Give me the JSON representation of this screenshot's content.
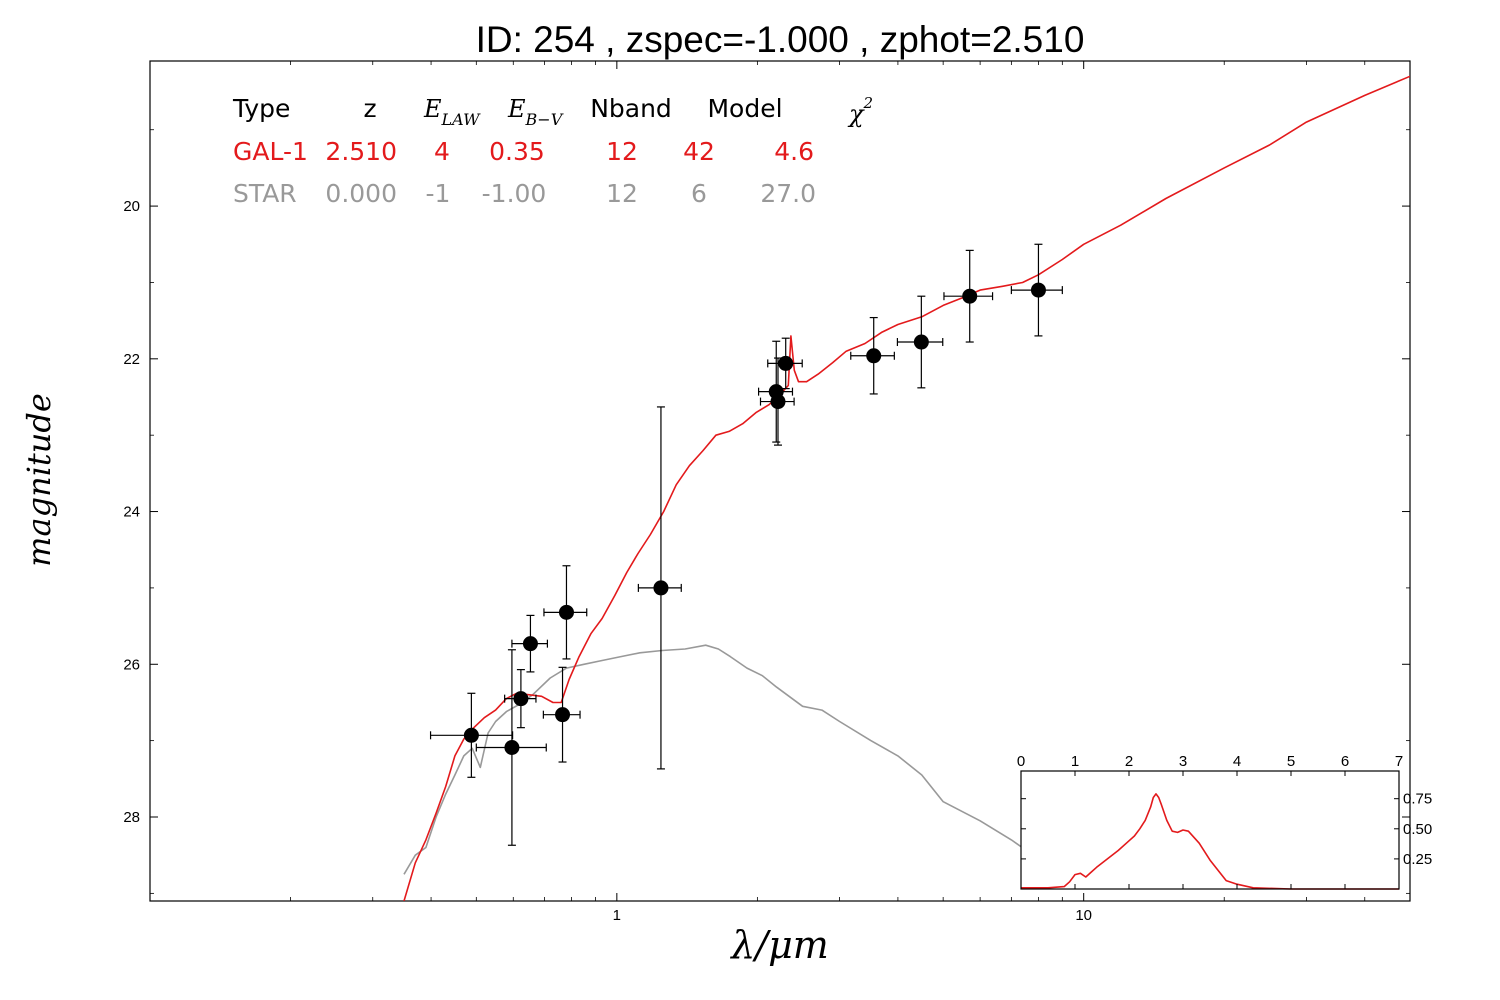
{
  "title": "ID:  254   , zspec=-1.000 , zphot=2.510",
  "colors": {
    "galaxy": "#e31a1c",
    "star": "#999999",
    "points": "#000000"
  },
  "table": {
    "headers": {
      "type": "Type",
      "z": "z",
      "elaw_base": "E",
      "elaw_sub": "LAW",
      "ebv_base": "E",
      "ebv_sub": "B−V",
      "nband": "Nband",
      "model": "Model",
      "chi_base": "χ",
      "chi_sup": "2"
    },
    "rows": [
      {
        "type": "GAL-1",
        "z": "2.510",
        "elaw": "4",
        "ebv": "0.35",
        "nband": "12",
        "model": "42",
        "chi2": "4.6",
        "color": "#e31a1c"
      },
      {
        "type": "STAR",
        "z": "0.000",
        "elaw": "-1",
        "ebv": "-1.00",
        "nband": "12",
        "model": "6",
        "chi2": "27.0",
        "color": "#999999"
      }
    ]
  },
  "chart_data": [
    {
      "type": "scatter",
      "xlabel": "λ/μm",
      "ylabel": "magnitude",
      "xscale": "log",
      "xlim": [
        0.1,
        50
      ],
      "ylim": [
        29.1,
        18.1
      ],
      "y_inverted": true,
      "xticks": [
        {
          "value": 1,
          "label": "1"
        },
        {
          "value": 10,
          "label": "10"
        }
      ],
      "yticks": [
        {
          "value": 20,
          "label": "20"
        },
        {
          "value": 22,
          "label": "22"
        },
        {
          "value": 24,
          "label": "24"
        },
        {
          "value": 26,
          "label": "26"
        },
        {
          "value": 28,
          "label": "28"
        }
      ],
      "points": [
        {
          "x": 0.488,
          "y": 26.93,
          "xerr": [
            0.089,
            0.11
          ],
          "yerr": [
            0.55,
            0.55
          ]
        },
        {
          "x": 0.596,
          "y": 27.09,
          "xerr": [
            0.096,
            0.11
          ],
          "yerr": [
            1.28,
            1.28
          ]
        },
        {
          "x": 0.623,
          "y": 26.45,
          "xerr": [
            0.048,
            0.048
          ],
          "yerr": [
            0.38,
            0.38
          ]
        },
        {
          "x": 0.653,
          "y": 25.73,
          "xerr": [
            0.057,
            0.057
          ],
          "yerr": [
            0.37,
            0.37
          ]
        },
        {
          "x": 0.765,
          "y": 26.66,
          "xerr": [
            0.069,
            0.069
          ],
          "yerr": [
            0.62,
            0.62
          ]
        },
        {
          "x": 0.78,
          "y": 25.32,
          "xerr": [
            0.082,
            0.082
          ],
          "yerr": [
            0.61,
            0.61
          ]
        },
        {
          "x": 1.243,
          "y": 25.0,
          "xerr": [
            0.131,
            0.131
          ],
          "yerr": [
            2.37,
            2.37
          ]
        },
        {
          "x": 2.195,
          "y": 22.43,
          "xerr": [
            0.183,
            0.183
          ],
          "yerr": [
            0.66,
            0.66
          ]
        },
        {
          "x": 2.214,
          "y": 22.56,
          "xerr": [
            0.183,
            0.183
          ],
          "yerr": [
            0.57,
            0.57
          ]
        },
        {
          "x": 2.3,
          "y": 22.06,
          "xerr": [
            0.195,
            0.195
          ],
          "yerr": [
            0.33,
            0.33
          ]
        },
        {
          "x": 3.55,
          "y": 21.96,
          "xerr": [
            0.38,
            0.38
          ],
          "yerr": [
            0.5,
            0.5
          ]
        },
        {
          "x": 4.49,
          "y": 21.78,
          "xerr": [
            0.5,
            0.5
          ],
          "yerr": [
            0.6,
            0.6
          ]
        },
        {
          "x": 5.7,
          "y": 21.18,
          "xerr": [
            0.68,
            0.68
          ],
          "yerr": [
            0.6,
            0.6
          ]
        },
        {
          "x": 8.0,
          "y": 21.1,
          "xerr": [
            1.0,
            1.0
          ],
          "yerr": [
            0.6,
            0.6
          ]
        }
      ],
      "series": [
        {
          "name": "GAL-1",
          "color": "#e31a1c",
          "x": [
            0.35,
            0.37,
            0.39,
            0.41,
            0.43,
            0.45,
            0.47,
            0.49,
            0.52,
            0.55,
            0.58,
            0.61,
            0.65,
            0.69,
            0.73,
            0.76,
            0.79,
            0.83,
            0.88,
            0.93,
            0.99,
            1.05,
            1.11,
            1.18,
            1.26,
            1.34,
            1.43,
            1.53,
            1.63,
            1.74,
            1.86,
            1.99,
            2.12,
            2.25,
            2.33,
            2.36,
            2.4,
            2.45,
            2.55,
            2.7,
            2.9,
            3.1,
            3.4,
            3.7,
            4.0,
            4.5,
            5.0,
            5.5,
            6.0,
            6.7,
            7.4,
            8.0,
            9.0,
            10.0,
            12.0,
            15.0,
            20.0,
            25.0,
            30.0,
            40.0,
            50.0
          ],
          "y": [
            29.1,
            28.6,
            28.3,
            27.95,
            27.6,
            27.2,
            26.98,
            26.85,
            26.7,
            26.6,
            26.45,
            26.38,
            26.4,
            26.42,
            26.5,
            26.5,
            26.2,
            25.9,
            25.6,
            25.4,
            25.1,
            24.8,
            24.55,
            24.3,
            24.0,
            23.65,
            23.4,
            23.2,
            23.0,
            22.95,
            22.85,
            22.7,
            22.6,
            22.45,
            22.35,
            21.7,
            22.15,
            22.3,
            22.3,
            22.2,
            22.05,
            21.9,
            21.8,
            21.65,
            21.55,
            21.45,
            21.3,
            21.2,
            21.1,
            21.05,
            21.0,
            20.9,
            20.7,
            20.5,
            20.25,
            19.9,
            19.5,
            19.2,
            18.9,
            18.55,
            18.3
          ]
        },
        {
          "name": "STAR",
          "color": "#999999",
          "x": [
            0.35,
            0.37,
            0.39,
            0.41,
            0.43,
            0.45,
            0.47,
            0.49,
            0.51,
            0.53,
            0.55,
            0.58,
            0.62,
            0.66,
            0.72,
            0.78,
            0.85,
            0.93,
            1.02,
            1.12,
            1.25,
            1.4,
            1.55,
            1.65,
            1.75,
            1.9,
            2.05,
            2.2,
            2.5,
            2.75,
            3.0,
            3.5,
            4.0,
            4.5,
            5.0,
            6.0,
            7.0,
            8.0,
            9.0
          ],
          "y": [
            28.75,
            28.5,
            28.4,
            28.0,
            27.7,
            27.45,
            27.2,
            27.1,
            27.35,
            26.9,
            26.75,
            26.62,
            26.52,
            26.4,
            26.18,
            26.05,
            26.0,
            25.95,
            25.9,
            25.85,
            25.82,
            25.8,
            25.75,
            25.8,
            25.9,
            26.05,
            26.15,
            26.3,
            26.55,
            26.6,
            26.75,
            27.0,
            27.2,
            27.45,
            27.8,
            28.05,
            28.3,
            28.55,
            28.85
          ]
        }
      ]
    },
    {
      "type": "line",
      "xlim": [
        0,
        7
      ],
      "ylim": [
        0,
        0.98
      ],
      "xticks": [
        0,
        1,
        2,
        3,
        4,
        5,
        6,
        7
      ],
      "yticks": [
        0.25,
        0.5,
        0.75
      ],
      "series": [
        {
          "color": "#e31a1c",
          "x": [
            0.0,
            0.5,
            0.8,
            0.9,
            1.0,
            1.1,
            1.2,
            1.3,
            1.4,
            1.6,
            1.8,
            2.0,
            2.1,
            2.2,
            2.3,
            2.4,
            2.45,
            2.5,
            2.55,
            2.6,
            2.7,
            2.8,
            2.9,
            3.0,
            3.1,
            3.2,
            3.3,
            3.5,
            3.8,
            4.0,
            4.3,
            5.0,
            6.0,
            7.0
          ],
          "y": [
            0.01,
            0.01,
            0.02,
            0.06,
            0.12,
            0.13,
            0.1,
            0.14,
            0.18,
            0.25,
            0.32,
            0.4,
            0.44,
            0.5,
            0.57,
            0.68,
            0.76,
            0.79,
            0.76,
            0.7,
            0.57,
            0.48,
            0.47,
            0.49,
            0.48,
            0.43,
            0.38,
            0.24,
            0.07,
            0.04,
            0.01,
            0.0,
            0.0,
            0.0
          ]
        }
      ]
    }
  ]
}
